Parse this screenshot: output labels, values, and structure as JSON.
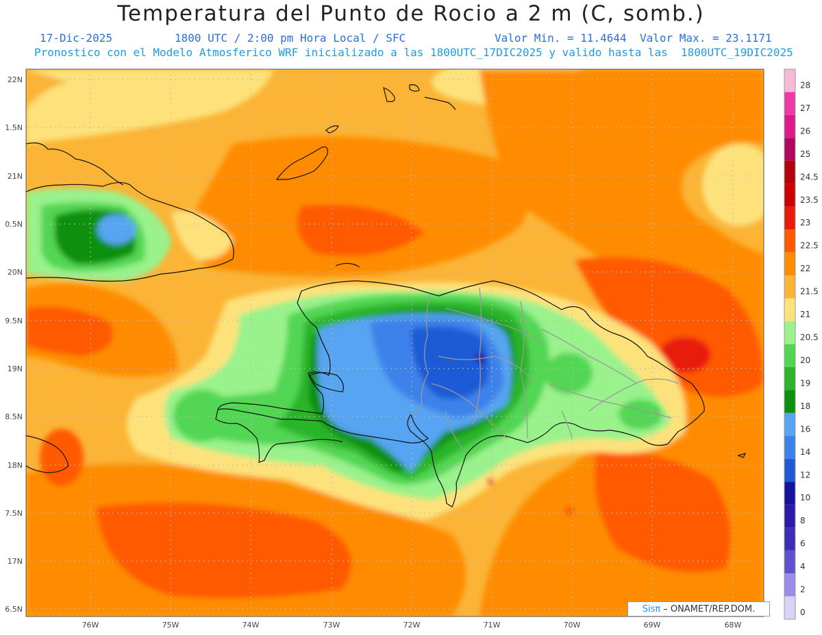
{
  "header": {
    "title": "Temperatura del Punto de Rocio a 2 m (C, somb.)",
    "date": "17-Dic-2025",
    "time": "1800 UTC / 2:00 pm Hora Local / SFC",
    "min_label": "Valor Min. = 11.4644",
    "max_label": "Valor Max. = 23.1171",
    "description": "Pronostico con el Modelo Atmosferico WRF inicializado a las 1800UTC_17DIC2025 y valido hasta las  1800UTC_19DIC2025"
  },
  "axes": {
    "lat_labels": [
      "22N",
      "1.5N",
      "21N",
      "0.5N",
      "20N",
      "9.5N",
      "19N",
      "8.5N",
      "18N",
      "7.5N",
      "17N",
      "6.5N"
    ],
    "lon_labels": [
      "76W",
      "75W",
      "74W",
      "73W",
      "72W",
      "71W",
      "70W",
      "69W",
      "68W"
    ]
  },
  "legend": {
    "labels": [
      "28",
      "27",
      "26",
      "25",
      "24.5",
      "23.5",
      "23",
      "22.5",
      "22",
      "21.5",
      "21",
      "20.5",
      "20",
      "19",
      "18",
      "16",
      "14",
      "12",
      "10",
      "8",
      "6",
      "4",
      "2",
      "0"
    ],
    "colors": [
      "#f8b8d8",
      "#ee3aa6",
      "#dc1a88",
      "#b0085e",
      "#b4000c",
      "#cc0000",
      "#e81c0c",
      "#ff5a00",
      "#ff8c00",
      "#fbb436",
      "#fde27c",
      "#9af28c",
      "#52d652",
      "#2cb42c",
      "#0c9010",
      "#56a4f2",
      "#3c82ea",
      "#1e5ad6",
      "#16129c",
      "#2e1aa8",
      "#3b2eb4",
      "#6052cc",
      "#9c8cea",
      "#d8d4f6"
    ]
  },
  "credit": {
    "brand": "Sisπ",
    "text": "– ONAMET/REP.DOM."
  }
}
